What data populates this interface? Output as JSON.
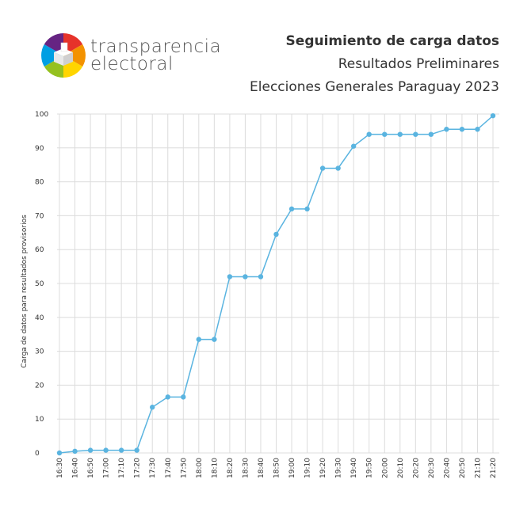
{
  "logo": {
    "line1": "transparencia",
    "line2": "electoral"
  },
  "header": {
    "title_line1": "Seguimiento de carga datos",
    "title_line2": "Resultados Preliminares",
    "title_line3": "Elecciones Generales Paraguay 2023"
  },
  "colors": {
    "series": "#5ab4e0",
    "grid": "#dcdcdc",
    "text": "#333333"
  },
  "chart_data": {
    "type": "line",
    "title": "Seguimiento de carga datos",
    "ylabel": "Carga de datos para resultados provisorios",
    "xlabel": "",
    "ylim": [
      0,
      100
    ],
    "yticks": [
      0,
      10,
      20,
      30,
      40,
      50,
      60,
      70,
      80,
      90,
      100
    ],
    "grid": true,
    "categories": [
      "16:30",
      "16:40",
      "16:50",
      "17:00",
      "17:10",
      "17:20",
      "17:30",
      "17:40",
      "17:50",
      "18:00",
      "18:10",
      "18:20",
      "18:30",
      "18:40",
      "18:50",
      "19:00",
      "19:10",
      "19:20",
      "19:30",
      "19:40",
      "19:50",
      "20:00",
      "20:10",
      "20:20",
      "20:30",
      "20:40",
      "20:50",
      "21:10",
      "21:20"
    ],
    "series": [
      {
        "values": [
          0,
          0.5,
          0.8,
          0.8,
          0.8,
          0.8,
          13.5,
          16.5,
          16.5,
          33.5,
          33.5,
          52,
          52,
          52,
          64.5,
          72,
          72,
          84,
          84,
          90.5,
          94,
          94,
          94,
          94,
          94,
          95.5,
          95.5,
          95.5,
          99.5
        ]
      }
    ]
  }
}
